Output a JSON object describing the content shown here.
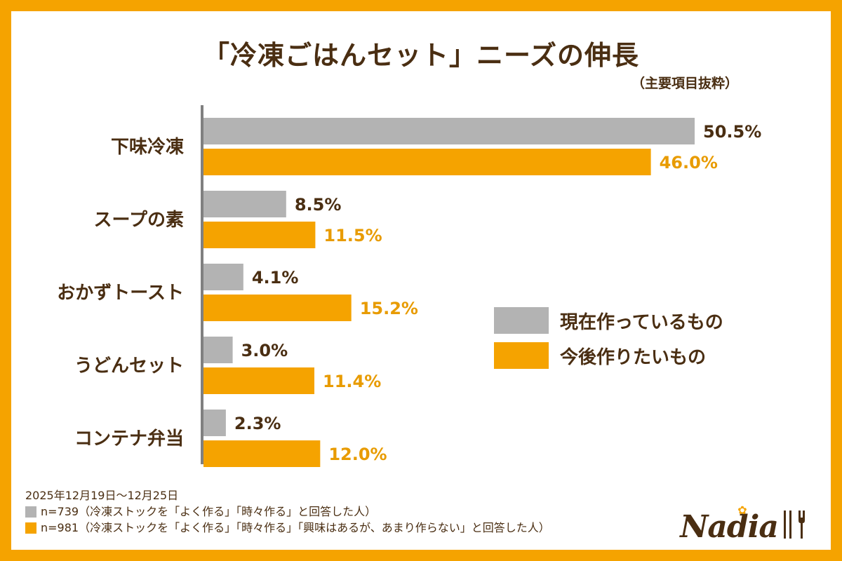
{
  "title": "「冷凍ごはんセット」ニーズの伸長",
  "subtitle": "（主要項目抜粋）",
  "chart_data": {
    "type": "bar",
    "orientation": "horizontal",
    "title": "「冷凍ごはんセット」ニーズの伸長",
    "categories": [
      "下味冷凍",
      "スープの素",
      "おかずトースト",
      "うどんセット",
      "コンテナ弁当"
    ],
    "series": [
      {
        "name": "現在作っているもの",
        "color": "#B3B3B3",
        "label_color": "#4A2E12",
        "values": [
          50.5,
          8.5,
          4.1,
          3.0,
          2.3
        ],
        "labels": [
          "50.5%",
          "8.5%",
          "4.1%",
          "3.0%",
          "2.3%"
        ]
      },
      {
        "name": "今後作りたいもの",
        "color": "#F5A300",
        "label_color": "#E89B00",
        "values": [
          46.0,
          11.5,
          15.2,
          11.4,
          12.0
        ],
        "labels": [
          "46.0%",
          "11.5%",
          "15.2%",
          "11.4%",
          "12.0%"
        ]
      }
    ],
    "xlim": [
      0,
      50.5
    ],
    "xlabel": "",
    "ylabel": "",
    "legend_position": "right"
  },
  "notes": {
    "period": "2025年12月19日〜12月25日",
    "sample_current": "n=739（冷凍ストックを「よく作る」「時々作る」と回答した人）",
    "sample_future": "n=981（冷凍ストックを「よく作る」「時々作る」「興味はあるが、あまり作らない」と回答した人）"
  },
  "logo": {
    "text": "Nadia",
    "flower": "✿"
  },
  "colors": {
    "frame": "#F5A300",
    "text": "#4A2E12",
    "gray": "#B3B3B3",
    "orange": "#F5A300"
  }
}
